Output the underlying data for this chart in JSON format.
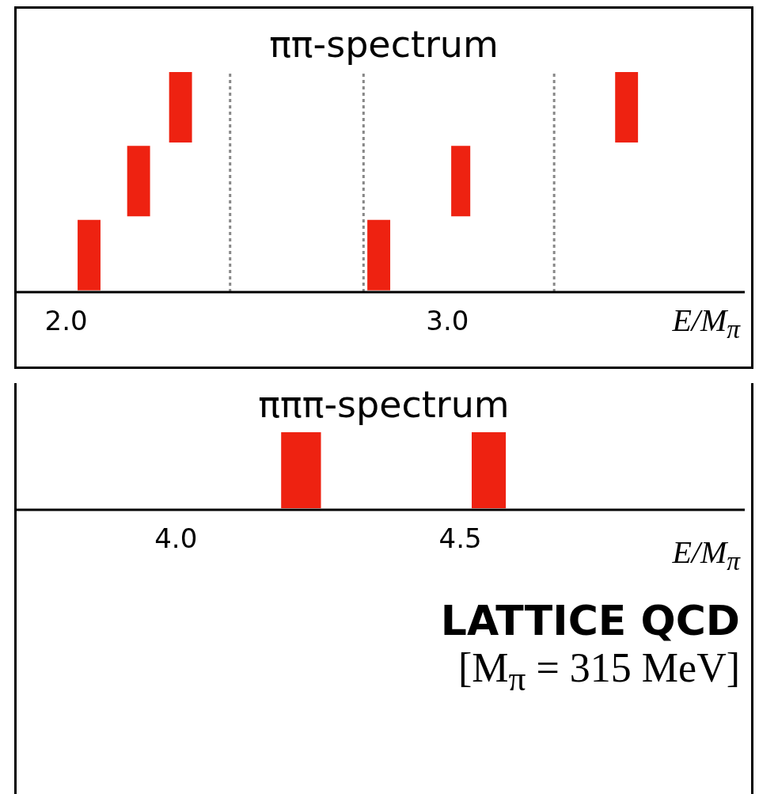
{
  "chart_data": [
    {
      "type": "bar",
      "orientation": "horizontal",
      "title": "ππ-spectrum",
      "xlabel": "E/M$_{π}$",
      "categories": [
        null,
        null,
        null
      ],
      "tick_labels": "x",
      "xlim": [
        1.87,
        3.78
      ],
      "xticks": [
        {
          "value": 2,
          "label": "2.0"
        },
        {
          "value": 3,
          "label": "3.0"
        }
      ],
      "series": [
        {
          "color": "#ee2211",
          "base": [
            2.27,
            2.16,
            2.03
          ],
          "values": [
            0.06,
            0.06,
            0.06
          ]
        },
        {
          "color": "#ee2211",
          "base": [
            3.44,
            3.01,
            2.79
          ],
          "values": [
            0.06,
            0.05,
            0.06
          ]
        }
      ],
      "ref_lines": [
        {
          "axis": "x",
          "value": 2.43,
          "color": "#888888",
          "line_style": "dotted"
        },
        {
          "axis": "x",
          "value": 2.78,
          "color": "#888888",
          "line_style": "dotted"
        },
        {
          "axis": "x",
          "value": 3.28,
          "color": "#888888",
          "line_style": "dotted"
        }
      ]
    },
    {
      "type": "bar",
      "orientation": "horizontal",
      "title": "πππ-spectrum",
      "xlabel": "E/M$_{π}$",
      "categories": [
        null
      ],
      "tick_labels": "x",
      "xlim": [
        3.72,
        5.0
      ],
      "xticks": [
        {
          "value": 4,
          "label": "4.0"
        },
        {
          "value": 4.5,
          "label": "4.5"
        }
      ],
      "series": [
        {
          "color": "#ee2211",
          "base": [
            4.185
          ],
          "values": [
            0.07
          ]
        },
        {
          "color": "#ee2211",
          "base": [
            4.52
          ],
          "values": [
            0.06
          ]
        }
      ],
      "annotations": [
        "LATTICE QCD",
        "[M$_{π}$ = 315 MeV]"
      ]
    }
  ]
}
